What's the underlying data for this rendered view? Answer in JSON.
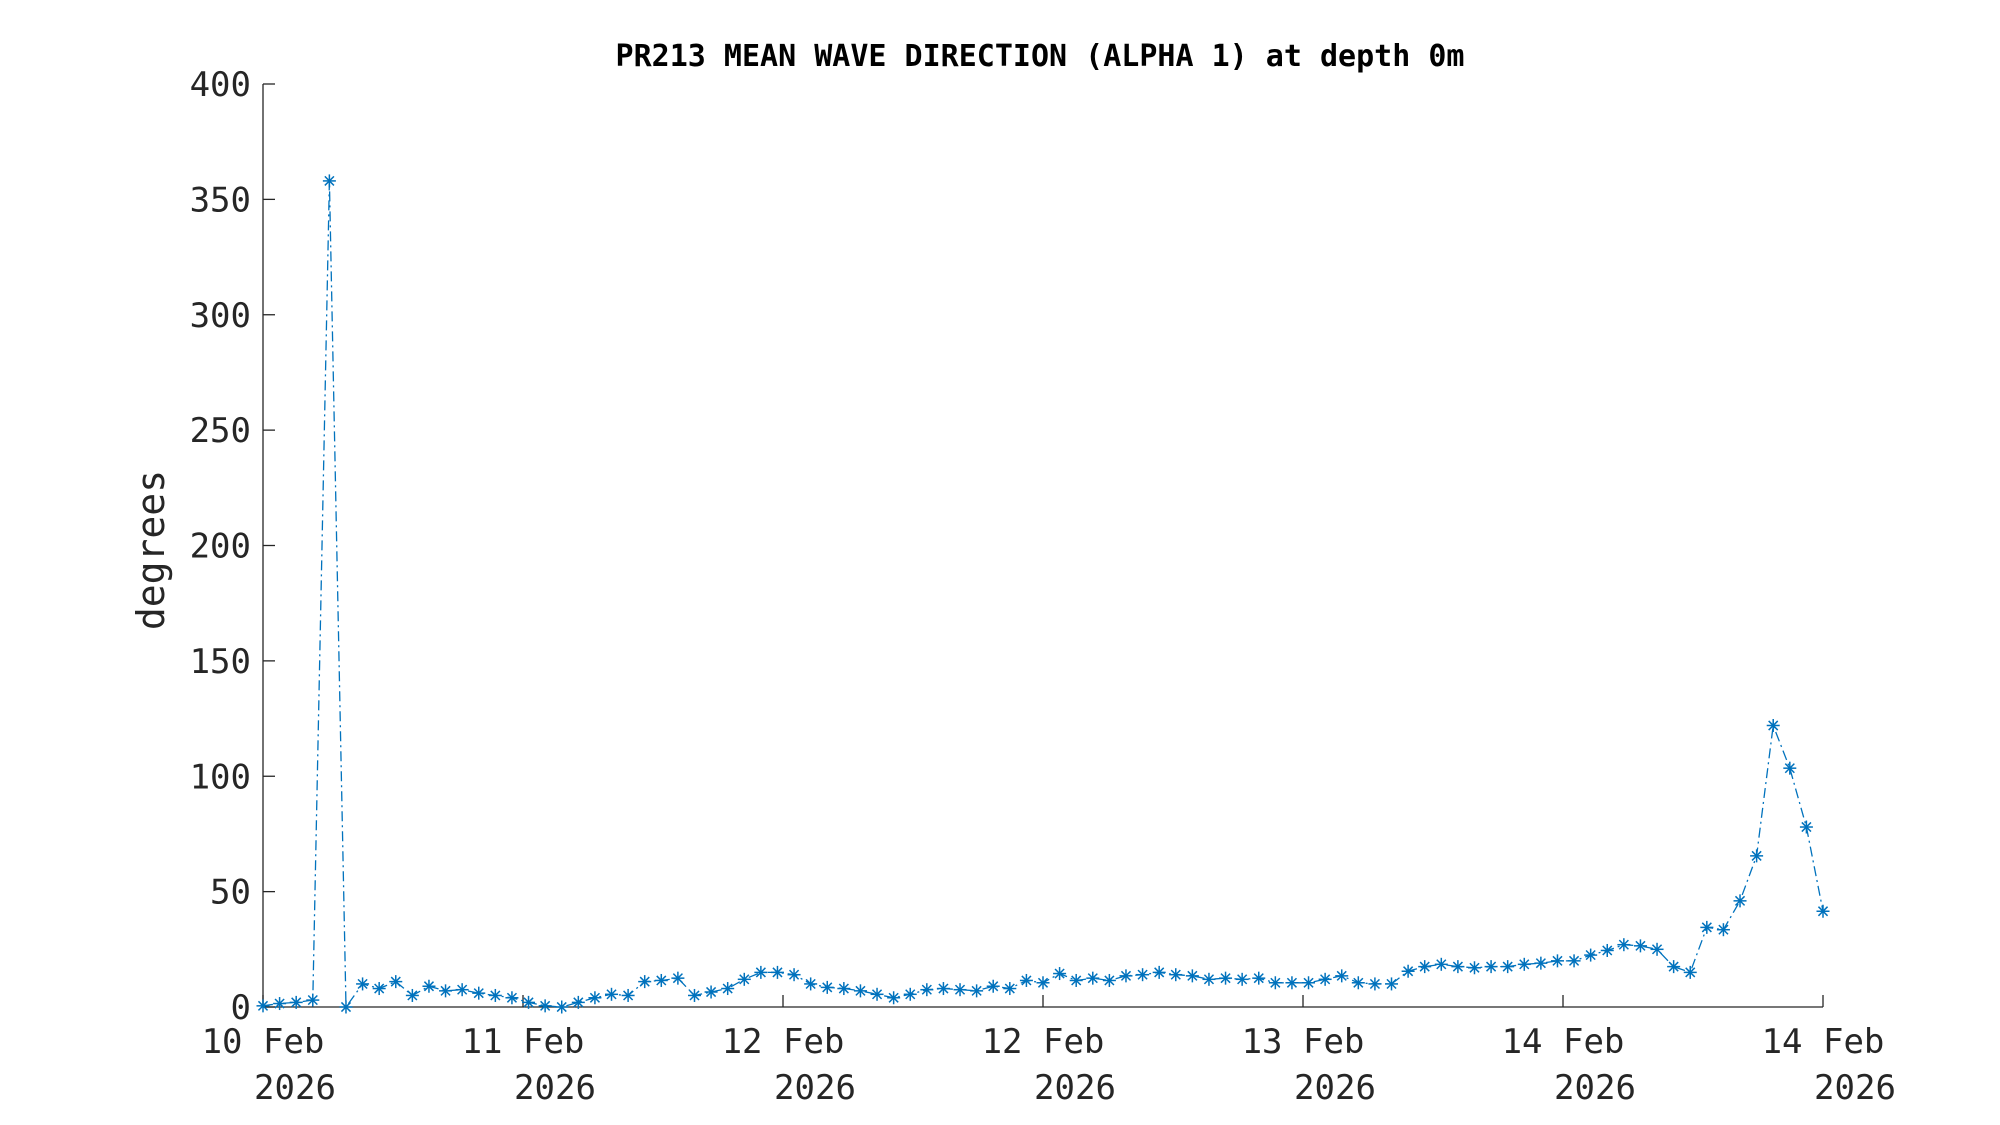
{
  "chart_data": {
    "type": "line",
    "title": "PR213 MEAN WAVE DIRECTION (ALPHA 1) at depth 0m",
    "ylabel": "degrees",
    "xlabel": "",
    "ylim": [
      0,
      400
    ],
    "yticks": [
      0,
      50,
      100,
      150,
      200,
      250,
      300,
      350,
      400
    ],
    "xtick_labels": [
      [
        "10 Feb",
        "2026"
      ],
      [
        "11 Feb",
        "2026"
      ],
      [
        "12 Feb",
        "2026"
      ],
      [
        "12 Feb",
        "2026"
      ],
      [
        "13 Feb",
        "2026"
      ],
      [
        "14 Feb",
        "2026"
      ],
      [
        "14 Feb",
        "2026"
      ]
    ],
    "grid": false,
    "line_style": "dash-dot",
    "marker": "asterisk",
    "color": "#0072BD",
    "series": [
      {
        "values": [
          0.5,
          1.5,
          2,
          3,
          358,
          0,
          10,
          8,
          11,
          5,
          9,
          7,
          7.5,
          6,
          5,
          4,
          2,
          0.5,
          0,
          2,
          4,
          5.5,
          5,
          11,
          11.5,
          12.5,
          5,
          6.5,
          8,
          12,
          15,
          15,
          14,
          10,
          8.5,
          8,
          7,
          5.5,
          4,
          5.5,
          7.5,
          8,
          7.5,
          7,
          9,
          8,
          11.5,
          10.5,
          14.5,
          11.5,
          12.5,
          11.5,
          13.5,
          14,
          15,
          14,
          13.5,
          12,
          12.5,
          12,
          12.5,
          10.5,
          10.5,
          10.5,
          12,
          13.5,
          10.5,
          10,
          10,
          15.5,
          17.5,
          18.5,
          17.5,
          17,
          17.5,
          17.5,
          18.5,
          19,
          20,
          20,
          22.5,
          24.5,
          27,
          26.5,
          25,
          17.5,
          15,
          34.5,
          33.5,
          46,
          65.5,
          122,
          103.5,
          78,
          41.5
        ]
      }
    ]
  }
}
